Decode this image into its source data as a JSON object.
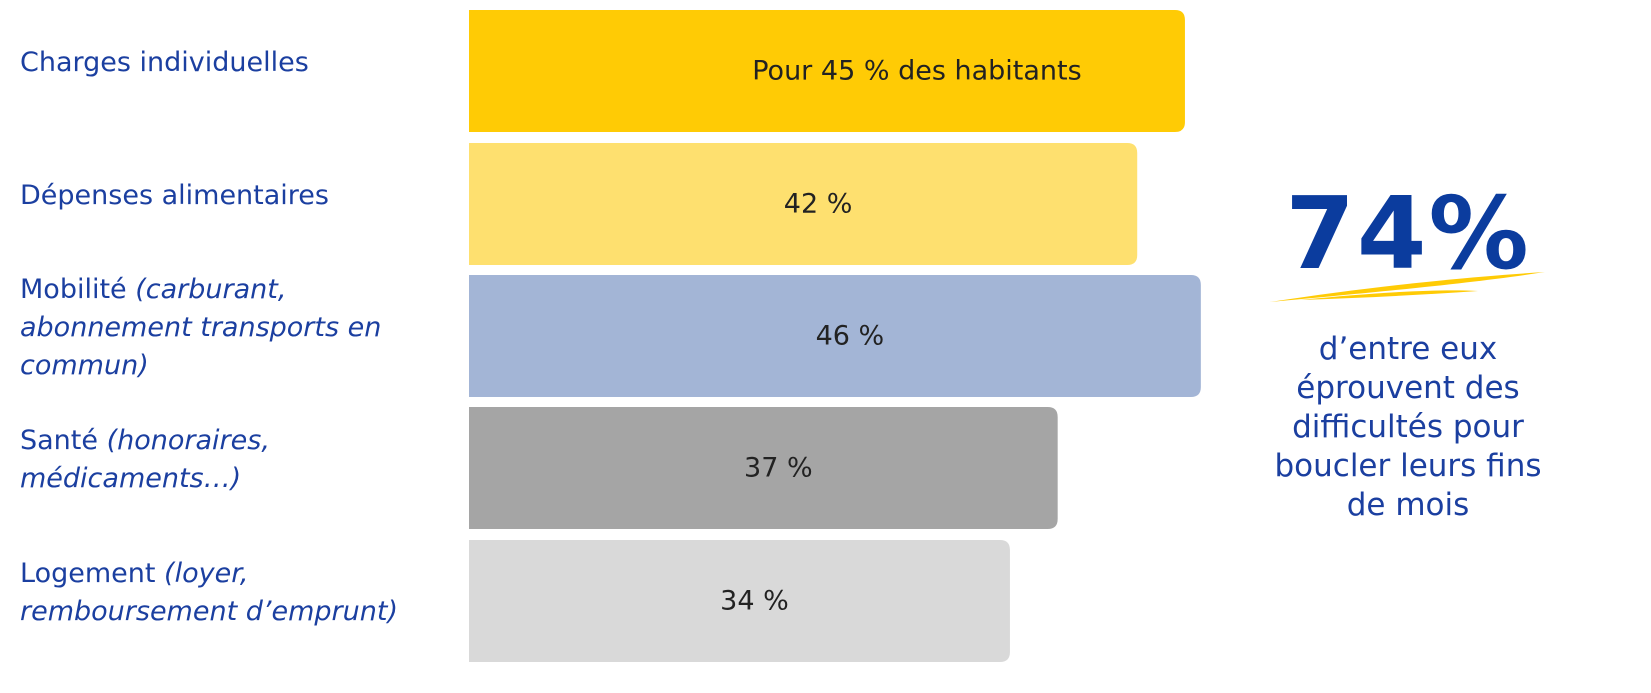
{
  "chart_data": {
    "type": "bar",
    "orientation": "horizontal",
    "categories": [
      "Charges individuelles",
      "Dépenses alimentaires",
      "Mobilité",
      "Santé",
      "Logement"
    ],
    "category_notes": [
      null,
      null,
      "(carburant, abonnement transports en commun)",
      "(honoraires, médicaments…)",
      "(loyer, remboursement d’emprunt)"
    ],
    "values": [
      45,
      42,
      46,
      37,
      34
    ],
    "value_labels": [
      "45 %",
      "42 %",
      "46 %",
      "37 %",
      "34 %"
    ],
    "value_label_prefix": "Pour",
    "value_label_suffix": "des habitants",
    "colors": [
      "#ffcb05",
      "#fee06f",
      "#a3b5d6",
      "#a5a5a5",
      "#d9d9d9"
    ],
    "highlight": "74%",
    "highlight_text": "d’entre eux éprouvent des difficultés pour boucler leurs fins de mois"
  }
}
